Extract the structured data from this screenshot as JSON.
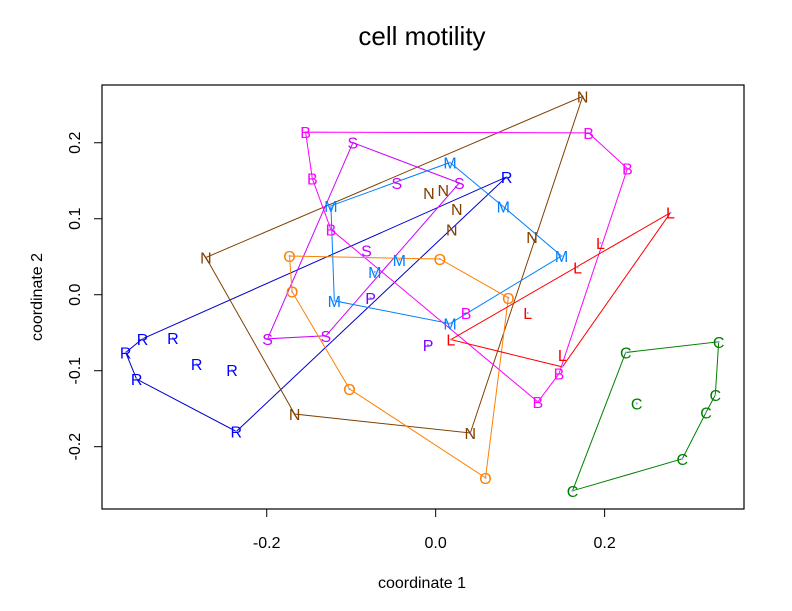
{
  "chart_data": {
    "type": "scatter",
    "title": "cell motility",
    "xlabel": "coordinate 1",
    "ylabel": "coordinate 2",
    "xlim": [
      -0.395,
      0.365
    ],
    "ylim": [
      -0.282,
      0.276
    ],
    "xticks": [
      -0.2,
      0.0,
      0.2
    ],
    "xtick_labels": [
      "-0.2",
      "0.0",
      "0.2"
    ],
    "yticks": [
      -0.2,
      -0.1,
      0.0,
      0.1,
      0.2
    ],
    "ytick_labels": [
      "-0.2",
      "-0.1",
      "0.0",
      "0.1",
      "0.2"
    ],
    "grid": false,
    "legend": "none",
    "groups": [
      {
        "name": "R",
        "marker": "R",
        "color": "#0000ff",
        "hull_color": "#0000cc",
        "points": [
          [
            -0.347,
            -0.058
          ],
          [
            -0.311,
            -0.057
          ],
          [
            -0.367,
            -0.076
          ],
          [
            -0.283,
            -0.091
          ],
          [
            -0.241,
            -0.099
          ],
          [
            -0.354,
            -0.111
          ],
          [
            -0.236,
            -0.18
          ],
          [
            0.084,
            0.155
          ]
        ],
        "hull": [
          2,
          0,
          7,
          6,
          5
        ]
      },
      {
        "name": "N",
        "marker": "N",
        "color": "#804000",
        "hull_color": "#804000",
        "points": [
          [
            -0.272,
            0.049
          ],
          [
            0.174,
            0.261
          ],
          [
            -0.008,
            0.134
          ],
          [
            0.009,
            0.138
          ],
          [
            0.025,
            0.113
          ],
          [
            0.019,
            0.086
          ],
          [
            0.114,
            0.076
          ],
          [
            -0.167,
            -0.157
          ],
          [
            0.041,
            -0.182
          ]
        ],
        "hull": [
          0,
          1,
          8,
          7
        ]
      },
      {
        "name": "B",
        "marker": "B",
        "color": "#ff00ff",
        "hull_color": "#ff00ff",
        "points": [
          [
            -0.154,
            0.214
          ],
          [
            0.181,
            0.213
          ],
          [
            0.227,
            0.166
          ],
          [
            -0.146,
            0.153
          ],
          [
            -0.124,
            0.086
          ],
          [
            0.036,
            -0.024
          ],
          [
            0.146,
            -0.104
          ],
          [
            0.121,
            -0.141
          ]
        ],
        "hull": [
          0,
          1,
          2,
          6,
          7,
          4,
          3
        ]
      },
      {
        "name": "S",
        "marker": "S",
        "color": "#cc00ff",
        "hull_color": "#cc00ff",
        "points": [
          [
            -0.098,
            0.2
          ],
          [
            -0.046,
            0.147
          ],
          [
            0.028,
            0.147
          ],
          [
            -0.082,
            0.058
          ],
          [
            -0.199,
            -0.058
          ],
          [
            -0.13,
            -0.054
          ]
        ],
        "hull": [
          0,
          2,
          5,
          4
        ]
      },
      {
        "name": "M",
        "marker": "M",
        "color": "#0080ff",
        "hull_color": "#0080ff",
        "points": [
          [
            0.017,
            0.174
          ],
          [
            -0.124,
            0.117
          ],
          [
            0.08,
            0.116
          ],
          [
            0.149,
            0.051
          ],
          [
            -0.043,
            0.046
          ],
          [
            -0.072,
            0.03
          ],
          [
            -0.12,
            -0.008
          ],
          [
            0.017,
            -0.038
          ]
        ],
        "hull": [
          0,
          2,
          3,
          7,
          6,
          1
        ]
      },
      {
        "name": "O",
        "marker": "O",
        "color": "#ff8000",
        "hull_color": "#ff8000",
        "points": [
          [
            -0.173,
            0.051
          ],
          [
            0.005,
            0.047
          ],
          [
            0.086,
            -0.004
          ],
          [
            -0.17,
            0.004
          ],
          [
            -0.102,
            -0.124
          ],
          [
            0.059,
            -0.241
          ]
        ],
        "hull": [
          0,
          1,
          2,
          5,
          4,
          3
        ]
      },
      {
        "name": "L",
        "marker": "L",
        "color": "#ff0000",
        "hull_color": "#ff0000",
        "points": [
          [
            0.278,
            0.108
          ],
          [
            0.195,
            0.068
          ],
          [
            0.168,
            0.036
          ],
          [
            0.109,
            -0.024
          ],
          [
            0.018,
            -0.059
          ],
          [
            0.15,
            -0.095
          ]
        ],
        "hull": [
          0,
          5,
          4
        ]
      },
      {
        "name": "P",
        "marker": "P",
        "color": "#8000ff",
        "hull_color": "#8000ff",
        "points": [
          [
            -0.077,
            -0.004
          ],
          [
            -0.009,
            -0.066
          ]
        ],
        "hull": []
      },
      {
        "name": "C",
        "marker": "C",
        "color": "#008000",
        "hull_color": "#008000",
        "points": [
          [
            0.225,
            -0.076
          ],
          [
            0.335,
            -0.062
          ],
          [
            0.331,
            -0.132
          ],
          [
            0.32,
            -0.155
          ],
          [
            0.292,
            -0.216
          ],
          [
            0.162,
            -0.258
          ],
          [
            0.238,
            -0.143
          ]
        ],
        "hull": [
          0,
          1,
          2,
          3,
          4,
          5
        ]
      }
    ]
  }
}
